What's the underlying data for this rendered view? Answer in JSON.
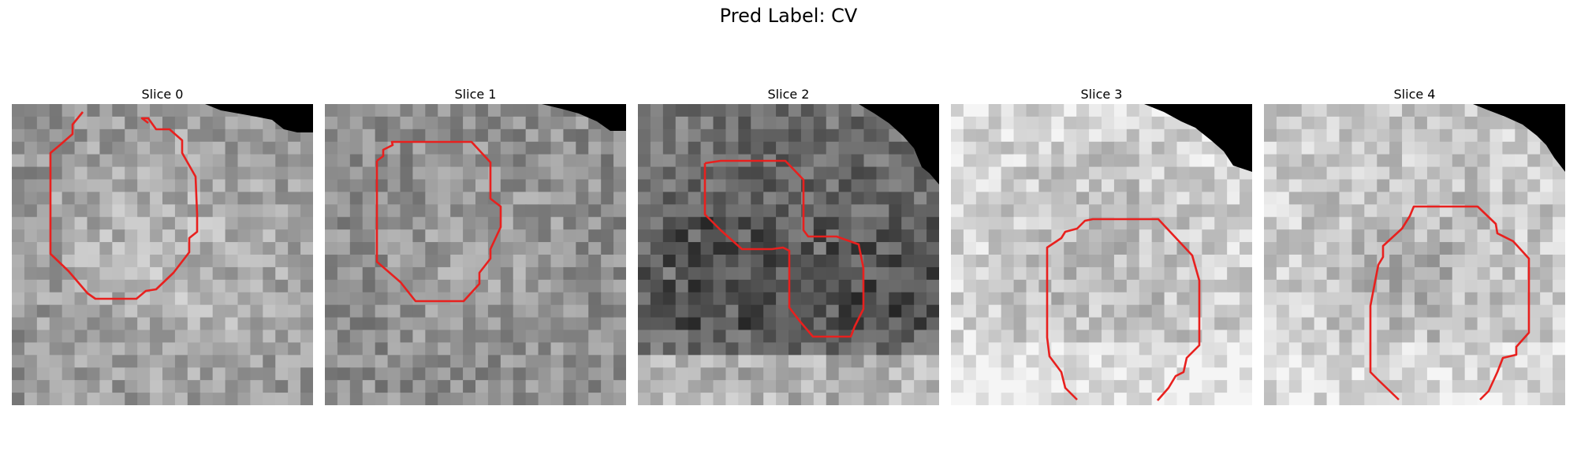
{
  "figure": {
    "title": "Pred Label: CV"
  },
  "panels": [
    {
      "title": "Slice 0",
      "seed": 11,
      "base": 165
    },
    {
      "title": "Slice 1",
      "seed": 23,
      "base": 160
    },
    {
      "title": "Slice 2",
      "seed": 37,
      "base": 120
    },
    {
      "title": "Slice 3",
      "seed": 41,
      "base": 205
    },
    {
      "title": "Slice 4",
      "seed": 53,
      "base": 185
    }
  ],
  "colors": {
    "contour": "#e8201e",
    "mask": "#000000"
  }
}
